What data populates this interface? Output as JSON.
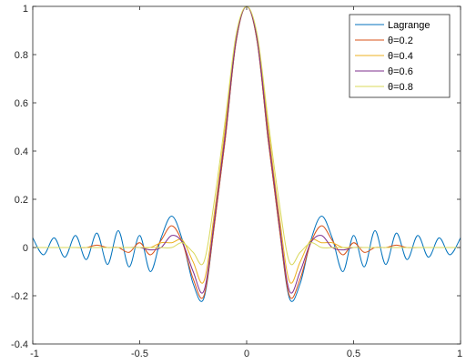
{
  "chart_data": {
    "type": "line",
    "xlim": [
      -1,
      1
    ],
    "ylim": [
      -0.4,
      1
    ],
    "x_ticks": [
      -1,
      -0.5,
      0,
      0.5,
      1
    ],
    "x_tick_labels": [
      "-1",
      "-0.5",
      "0",
      "0.5",
      "1"
    ],
    "y_ticks": [
      -0.4,
      -0.2,
      0,
      0.2,
      0.4,
      0.6,
      0.8,
      1
    ],
    "y_tick_labels": [
      "-0.4",
      "-0.2",
      "0",
      "0.2",
      "0.4",
      "0.6",
      "0.8",
      "1"
    ],
    "grid": false,
    "legend_position": "top-right",
    "x": [
      -1.0,
      -0.95,
      -0.9,
      -0.85,
      -0.8,
      -0.75,
      -0.7,
      -0.65,
      -0.6,
      -0.55,
      -0.5,
      -0.45,
      -0.4,
      -0.35,
      -0.3,
      -0.25,
      -0.2,
      -0.15,
      -0.1,
      -0.05,
      0.0,
      0.05,
      0.1,
      0.15,
      0.2,
      0.25,
      0.3,
      0.35,
      0.4,
      0.45,
      0.5,
      0.55,
      0.6,
      0.65,
      0.7,
      0.75,
      0.8,
      0.85,
      0.9,
      0.95,
      1.0
    ],
    "series": [
      {
        "name": "Lagrange",
        "color": "#0072BD",
        "values": [
          0.04,
          -0.03,
          0.04,
          -0.04,
          0.05,
          -0.05,
          0.06,
          -0.07,
          0.07,
          -0.08,
          0.05,
          -0.1,
          0.04,
          0.13,
          0.03,
          -0.15,
          -0.21,
          0.1,
          0.45,
          0.85,
          1.0,
          0.85,
          0.45,
          0.1,
          -0.21,
          -0.15,
          0.03,
          0.13,
          0.04,
          -0.1,
          0.05,
          -0.08,
          0.07,
          -0.07,
          0.06,
          -0.05,
          0.05,
          -0.04,
          0.04,
          -0.03,
          0.04
        ]
      },
      {
        "name": "θ=0.2",
        "color": "#D95319",
        "values": [
          0.0,
          0.0,
          0.0,
          0.0,
          0.0,
          0.0,
          0.01,
          0.0,
          0.0,
          -0.02,
          0.02,
          -0.03,
          0.03,
          0.09,
          0.02,
          -0.13,
          -0.2,
          0.1,
          0.45,
          0.85,
          1.0,
          0.85,
          0.45,
          0.1,
          -0.2,
          -0.13,
          0.02,
          0.09,
          0.03,
          -0.03,
          0.02,
          -0.02,
          0.0,
          0.0,
          0.01,
          0.0,
          0.0,
          0.0,
          0.0,
          0.0,
          0.0
        ]
      },
      {
        "name": "θ=0.4",
        "color": "#EDB120",
        "values": [
          0.0,
          0.0,
          0.0,
          0.0,
          0.0,
          0.0,
          0.0,
          0.0,
          0.0,
          0.0,
          0.0,
          0.0,
          0.02,
          0.02,
          0.03,
          -0.06,
          -0.14,
          0.15,
          0.5,
          0.87,
          1.0,
          0.87,
          0.5,
          0.15,
          -0.14,
          -0.06,
          0.03,
          0.02,
          0.02,
          0.0,
          0.0,
          0.0,
          0.0,
          0.0,
          0.0,
          0.0,
          0.0,
          0.0,
          0.0,
          0.0,
          0.0
        ]
      },
      {
        "name": "θ=0.6",
        "color": "#7E2F8E",
        "values": [
          0.0,
          0.0,
          0.0,
          0.0,
          0.0,
          0.0,
          0.0,
          0.0,
          0.0,
          0.0,
          0.0,
          -0.01,
          0.0,
          0.05,
          0.02,
          -0.1,
          -0.18,
          0.12,
          0.47,
          0.86,
          1.0,
          0.86,
          0.47,
          0.12,
          -0.18,
          -0.1,
          0.02,
          0.05,
          0.0,
          -0.01,
          0.0,
          0.0,
          0.0,
          0.0,
          0.0,
          0.0,
          0.0,
          0.0,
          0.0,
          0.0,
          0.0
        ]
      },
      {
        "name": "θ=0.8",
        "color": "#D8D85A",
        "values": [
          0.0,
          0.0,
          0.0,
          0.0,
          0.0,
          0.0,
          0.0,
          0.0,
          0.0,
          0.0,
          0.0,
          0.0,
          0.0,
          0.0,
          0.02,
          -0.02,
          -0.06,
          0.2,
          0.53,
          0.88,
          1.0,
          0.88,
          0.53,
          0.2,
          -0.06,
          -0.02,
          0.02,
          0.0,
          0.0,
          0.0,
          0.0,
          0.0,
          0.0,
          0.0,
          0.0,
          0.0,
          0.0,
          0.0,
          0.0,
          0.0,
          0.0
        ]
      }
    ]
  }
}
